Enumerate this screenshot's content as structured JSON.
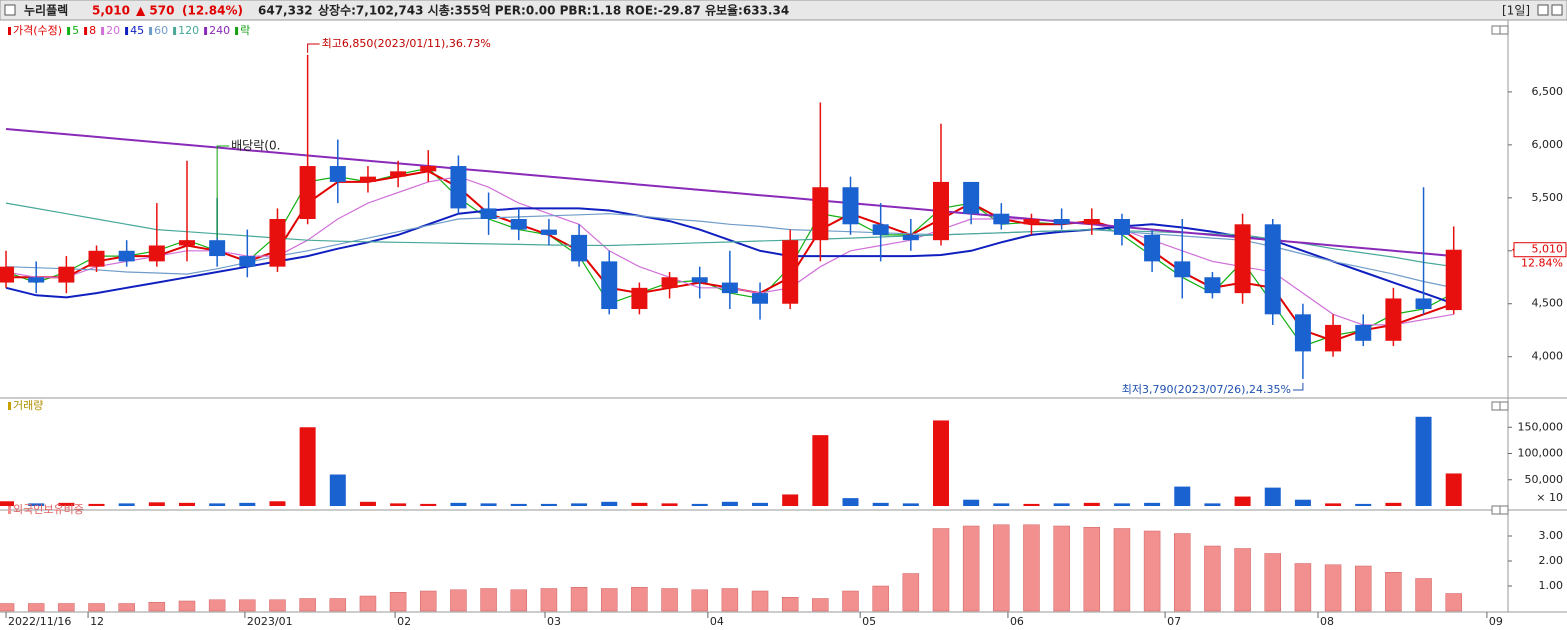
{
  "header": {
    "name": "누리플렉",
    "price": "5,010",
    "change": "▲ 570",
    "change_pct": "(12.84%)",
    "volume": "647,332",
    "info": "상장수:7,102,743 시총:355억 PER:0.00 PBR:1.18 ROE:-29.87 유보율:633.34",
    "period": "[1일]"
  },
  "chart_data": [
    {
      "type": "candlestick",
      "price_label": "가격(수정)",
      "extra_legend": "락",
      "up_color": "#e8100f",
      "down_color": "#1a62d0",
      "open": [
        4700,
        4750,
        4700,
        4850,
        5000,
        4900,
        5050,
        5100,
        4950,
        4850,
        5300,
        5800,
        5650,
        5700,
        5750,
        5800,
        5400,
        5300,
        5200,
        5150,
        4900,
        4450,
        4650,
        4750,
        4700,
        4600,
        4500,
        5100,
        5600,
        5250,
        5150,
        5100,
        5650,
        5350,
        5250,
        5300,
        5250,
        5300,
        5150,
        4900,
        4750,
        4600,
        5250,
        4400,
        4050,
        4300,
        4150,
        4550,
        4440
      ],
      "high": [
        5000,
        4900,
        4950,
        5050,
        5100,
        5450,
        5850,
        5500,
        5200,
        5400,
        6850,
        6050,
        5800,
        5850,
        5950,
        5900,
        5550,
        5400,
        5300,
        5250,
        5000,
        4700,
        4800,
        4850,
        5000,
        4700,
        5200,
        6400,
        5700,
        5450,
        5300,
        6200,
        5650,
        5450,
        5350,
        5400,
        5400,
        5350,
        5200,
        5300,
        4800,
        5350,
        5300,
        4500,
        4400,
        4400,
        4650,
        5600,
        5230
      ],
      "low": [
        4650,
        4600,
        4600,
        4800,
        4850,
        4850,
        4900,
        4850,
        4750,
        4800,
        5250,
        5450,
        5550,
        5600,
        5650,
        5350,
        5150,
        5100,
        5050,
        4850,
        4400,
        4400,
        4550,
        4550,
        4450,
        4350,
        4450,
        4900,
        5150,
        4900,
        5000,
        5050,
        5250,
        5200,
        5150,
        5200,
        5150,
        5050,
        4800,
        4550,
        4550,
        4500,
        4300,
        3790,
        4000,
        4100,
        4100,
        4400,
        4400
      ],
      "close": [
        4850,
        4700,
        4850,
        5000,
        4900,
        5050,
        5100,
        4950,
        4850,
        5300,
        5800,
        5650,
        5700,
        5750,
        5800,
        5400,
        5300,
        5200,
        5150,
        4900,
        4450,
        4650,
        4750,
        4700,
        4600,
        4500,
        5100,
        5600,
        5250,
        5150,
        5100,
        5650,
        5350,
        5250,
        5300,
        5250,
        5300,
        5150,
        4900,
        4750,
        4600,
        5250,
        4400,
        4050,
        4300,
        4150,
        4550,
        4450,
        5010
      ],
      "series": [
        {
          "name": "5",
          "color": "#10b010",
          "values": [
            4800,
            4700,
            4800,
            4950,
            4950,
            5000,
            5100,
            5000,
            4900,
            5150,
            5650,
            5700,
            5650,
            5720,
            5780,
            5500,
            5300,
            5200,
            5150,
            4950,
            4500,
            4600,
            4700,
            4720,
            4600,
            4550,
            4850,
            5350,
            5300,
            5150,
            5150,
            5400,
            5450,
            5250,
            5270,
            5250,
            5280,
            5150,
            4950,
            4750,
            4600,
            4900,
            4500,
            4100,
            4200,
            4250,
            4400,
            4450,
            4600
          ]
        },
        {
          "name": "8",
          "color": "#e00000",
          "values": [
            4750,
            4750,
            4750,
            4900,
            4950,
            4950,
            5050,
            5000,
            4900,
            5000,
            5450,
            5650,
            5650,
            5700,
            5750,
            5600,
            5350,
            5250,
            5150,
            5000,
            4650,
            4600,
            4650,
            4700,
            4650,
            4600,
            4750,
            5200,
            5350,
            5250,
            5150,
            5300,
            5450,
            5300,
            5250,
            5250,
            5280,
            5200,
            5000,
            4800,
            4650,
            4700,
            4650,
            4250,
            4150,
            4250,
            4300,
            4400,
            4500
          ]
        },
        {
          "name": "20",
          "color": "#d070d8",
          "values": [
            4800,
            4750,
            4750,
            4850,
            4900,
            4950,
            5000,
            5000,
            4950,
            4950,
            5100,
            5300,
            5450,
            5550,
            5650,
            5700,
            5600,
            5450,
            5350,
            5250,
            5000,
            4850,
            4750,
            4650,
            4650,
            4600,
            4650,
            4850,
            5000,
            5050,
            5100,
            5200,
            5300,
            5300,
            5300,
            5280,
            5250,
            5200,
            5100,
            5000,
            4900,
            4850,
            4800,
            4600,
            4400,
            4300,
            4300,
            4350,
            4400
          ]
        },
        {
          "name": "45",
          "color": "#1020c0",
          "values": [
            4650,
            4580,
            4560,
            4600,
            4650,
            4700,
            4750,
            4800,
            4850,
            4900,
            4950,
            5020,
            5080,
            5150,
            5250,
            5350,
            5380,
            5400,
            5400,
            5400,
            5380,
            5330,
            5280,
            5200,
            5100,
            5000,
            4950,
            4950,
            4950,
            4950,
            4950,
            4960,
            5000,
            5080,
            5150,
            5180,
            5200,
            5230,
            5250,
            5220,
            5180,
            5130,
            5100,
            5000,
            4900,
            4800,
            4700,
            4600,
            4500
          ]
        },
        {
          "name": "60",
          "color": "#6f9cc8",
          "values": [
            4850,
            4840,
            4830,
            4820,
            4800,
            4790,
            4780,
            4830,
            4890,
            4950,
            5000,
            5060,
            5120,
            5180,
            5240,
            5300,
            5310,
            5320,
            5330,
            5340,
            5350,
            5330,
            5300,
            5280,
            5250,
            5230,
            5200,
            5190,
            5180,
            5170,
            5160,
            5150,
            5160,
            5170,
            5180,
            5190,
            5200,
            5180,
            5160,
            5140,
            5120,
            5100,
            5040,
            4970,
            4900,
            4840,
            4780,
            4710,
            4650
          ]
        },
        {
          "name": "120",
          "color": "#48a89a",
          "values": [
            5450,
            5400,
            5350,
            5300,
            5250,
            5200,
            5180,
            5160,
            5140,
            5120,
            5100,
            5090,
            5085,
            5080,
            5075,
            5070,
            5065,
            5060,
            5055,
            5052,
            5050,
            5058,
            5066,
            5075,
            5083,
            5092,
            5100,
            5110,
            5120,
            5130,
            5140,
            5150,
            5160,
            5170,
            5180,
            5190,
            5200,
            5190,
            5180,
            5170,
            5160,
            5150,
            5110,
            5070,
            5020,
            4980,
            4940,
            4890,
            4850
          ]
        },
        {
          "name": "240",
          "color": "#8a2ab8",
          "values": [
            6150,
            6125,
            6100,
            6075,
            6050,
            6025,
            6000,
            5975,
            5950,
            5925,
            5900,
            5875,
            5850,
            5825,
            5800,
            5775,
            5750,
            5725,
            5700,
            5675,
            5650,
            5625,
            5600,
            5575,
            5550,
            5525,
            5500,
            5475,
            5450,
            5425,
            5400,
            5375,
            5350,
            5325,
            5300,
            5275,
            5250,
            5225,
            5200,
            5175,
            5150,
            5125,
            5100,
            5075,
            5050,
            5025,
            5000,
            4975,
            4950
          ]
        }
      ],
      "ylim": [
        3610,
        7160
      ],
      "xlim": [
        -0.2,
        49.8
      ],
      "yticks": [
        {
          "value": 4000,
          "label": "4,000"
        },
        {
          "value": 4500,
          "label": "4,500"
        },
        {
          "value": 5000,
          "label": "5,000"
        },
        {
          "value": 5500,
          "label": "5,500"
        },
        {
          "value": 6000,
          "label": "6,000"
        },
        {
          "value": 6500,
          "label": "6,500"
        }
      ],
      "annotations": {
        "high": "최고6,850(2023/01/11),36.73%",
        "low": "최저3,790(2023/07/26),24.35%",
        "dividend": "배당락(0."
      },
      "last": {
        "value": 5010,
        "label": "5,010"
      },
      "last_change": "12.84%"
    },
    {
      "type": "bar",
      "title": "거래량",
      "unit_label": "× 10",
      "xlim": [
        -0.2,
        49.8
      ],
      "ylim": [
        0,
        181000
      ],
      "yticks": [
        {
          "value": 50000,
          "label": "50,000"
        },
        {
          "value": 100000,
          "label": "100,000"
        },
        {
          "value": 150000,
          "label": "150,000"
        }
      ],
      "values": [
        9000,
        5000,
        6000,
        4000,
        5000,
        7000,
        6000,
        5000,
        6000,
        9000,
        150000,
        60000,
        8000,
        5000,
        4000,
        6000,
        5000,
        4000,
        4000,
        5000,
        8000,
        6000,
        5000,
        4000,
        8000,
        6000,
        22000,
        135000,
        15000,
        6000,
        5000,
        163000,
        12000,
        5000,
        4000,
        5000,
        6000,
        5000,
        6000,
        37000,
        5000,
        18000,
        35000,
        12000,
        5000,
        4000,
        6000,
        170000,
        62000
      ]
    },
    {
      "type": "bar",
      "title": "외국인보유비중",
      "color": "#f29090",
      "xlim": [
        -0.2,
        49.8
      ],
      "ylim": [
        0,
        3.84
      ],
      "yticks": [
        {
          "value": 1,
          "label": "1.00"
        },
        {
          "value": 2,
          "label": "2.00"
        },
        {
          "value": 3,
          "label": "3.00"
        }
      ],
      "values": [
        0.3,
        0.3,
        0.3,
        0.3,
        0.3,
        0.35,
        0.4,
        0.45,
        0.45,
        0.45,
        0.5,
        0.5,
        0.6,
        0.75,
        0.8,
        0.85,
        0.9,
        0.85,
        0.9,
        0.95,
        0.9,
        0.95,
        0.9,
        0.85,
        0.9,
        0.8,
        0.55,
        0.5,
        0.8,
        1.0,
        1.5,
        3.3,
        3.4,
        3.45,
        3.45,
        3.4,
        3.35,
        3.3,
        3.2,
        3.1,
        2.6,
        2.5,
        2.3,
        1.9,
        1.85,
        1.8,
        1.55,
        1.3,
        0.7
      ],
      "xticks": [
        {
          "value": 0,
          "label": "2022/11/16"
        },
        {
          "value": 2.72,
          "label": "12"
        },
        {
          "value": 7.92,
          "label": "2023/01"
        },
        {
          "value": 12.9,
          "label": "02"
        },
        {
          "value": 17.87,
          "label": "03"
        },
        {
          "value": 23.27,
          "label": "04"
        },
        {
          "value": 28.32,
          "label": "05"
        },
        {
          "value": 33.22,
          "label": "06"
        },
        {
          "value": 38.43,
          "label": "07"
        },
        {
          "value": 43.5,
          "label": "08"
        },
        {
          "value": 49.1,
          "label": "09"
        }
      ]
    }
  ]
}
